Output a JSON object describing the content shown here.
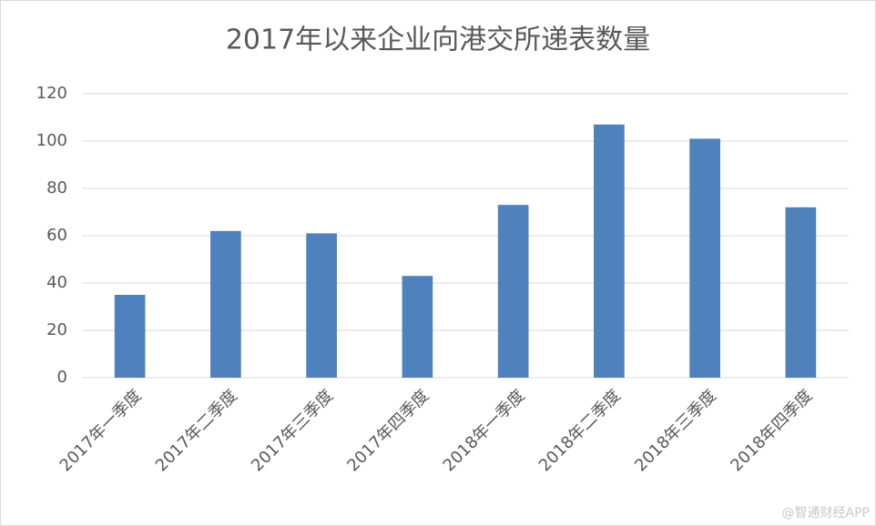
{
  "chart_data": {
    "type": "bar",
    "title": "2017年以来企业向港交所递表数量",
    "categories": [
      "2017年一季度",
      "2017年二季度",
      "2017年三季度",
      "2017年四季度",
      "2018年一季度",
      "2018年二季度",
      "2018年三季度",
      "2018年四季度"
    ],
    "values": [
      35,
      62,
      61,
      43,
      73,
      107,
      101,
      72
    ],
    "color": "#4f81bd",
    "ylim": [
      0,
      120
    ],
    "yticks": [
      0,
      20,
      40,
      60,
      80,
      100,
      120
    ],
    "grid": true,
    "watermark": "@智通财经APP"
  }
}
